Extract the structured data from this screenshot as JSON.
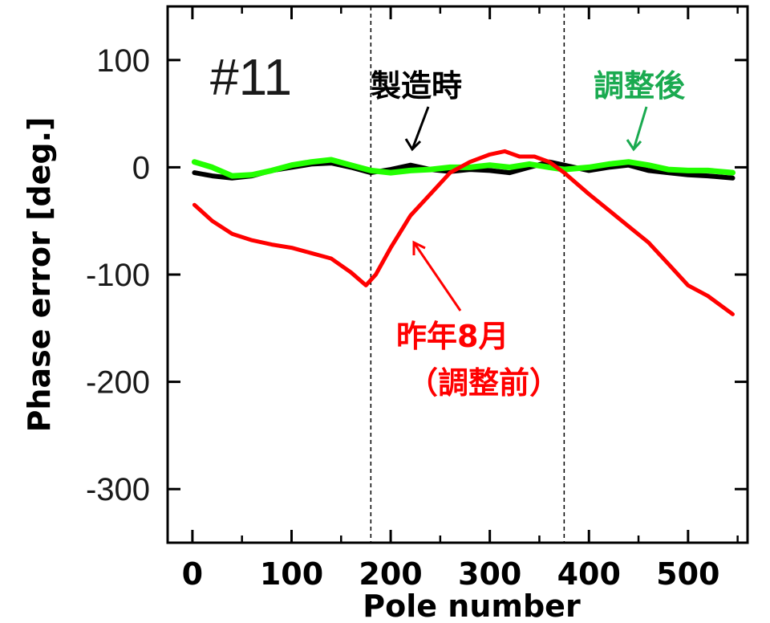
{
  "chart_data": {
    "type": "line",
    "panel_label": "#11",
    "xlabel": "Pole number",
    "ylabel": "Phase error [deg.]",
    "xlim": [
      -25,
      560
    ],
    "ylim": [
      -350,
      150
    ],
    "x_ticks": [
      0,
      100,
      200,
      300,
      400,
      500
    ],
    "y_ticks": [
      100,
      0,
      -100,
      -200,
      -300
    ],
    "x_tick_labels": [
      "0",
      "100",
      "200",
      "300",
      "400",
      "500"
    ],
    "y_tick_labels": [
      "100",
      "0",
      "-100",
      "-200",
      "-300"
    ],
    "reference_lines_x": [
      180,
      375
    ],
    "colors": {
      "manufacture": "#000000",
      "adjusted": "#22ff00",
      "before": "#ff0000",
      "adjusted_label": "#1aaa50",
      "before_label": "#ff0000"
    },
    "annotations": {
      "manufacture": "製造時",
      "adjusted": "調整後",
      "before_line1": "昨年8月",
      "before_line2": "（調整前）"
    },
    "series": [
      {
        "key": "manufacture",
        "x": [
          2,
          20,
          40,
          60,
          80,
          100,
          120,
          140,
          160,
          180,
          200,
          220,
          240,
          260,
          280,
          300,
          320,
          340,
          360,
          375,
          400,
          420,
          440,
          460,
          480,
          500,
          520,
          545
        ],
        "y": [
          -5,
          -8,
          -10,
          -8,
          -3,
          0,
          3,
          4,
          0,
          -5,
          -2,
          2,
          -2,
          -4,
          -2,
          -3,
          -5,
          0,
          5,
          2,
          -3,
          0,
          2,
          -3,
          -5,
          -7,
          -8,
          -10
        ]
      },
      {
        "key": "adjusted",
        "x": [
          2,
          20,
          40,
          60,
          80,
          100,
          120,
          140,
          160,
          180,
          200,
          220,
          240,
          260,
          280,
          300,
          320,
          340,
          360,
          375,
          400,
          420,
          440,
          460,
          480,
          500,
          520,
          545
        ],
        "y": [
          5,
          0,
          -8,
          -7,
          -3,
          2,
          5,
          7,
          2,
          -3,
          -5,
          -3,
          -2,
          0,
          0,
          2,
          0,
          3,
          0,
          -2,
          0,
          3,
          5,
          2,
          -2,
          -3,
          -3,
          -5
        ]
      },
      {
        "key": "before",
        "x": [
          2,
          20,
          40,
          60,
          80,
          100,
          120,
          140,
          160,
          175,
          185,
          200,
          220,
          240,
          260,
          280,
          300,
          315,
          330,
          345,
          360,
          375,
          400,
          420,
          440,
          460,
          480,
          500,
          520,
          545
        ],
        "y": [
          -35,
          -50,
          -62,
          -68,
          -72,
          -75,
          -80,
          -85,
          -98,
          -110,
          -100,
          -75,
          -45,
          -25,
          -5,
          5,
          12,
          15,
          10,
          10,
          5,
          -5,
          -25,
          -40,
          -55,
          -70,
          -90,
          -110,
          -120,
          -137
        ]
      }
    ]
  }
}
